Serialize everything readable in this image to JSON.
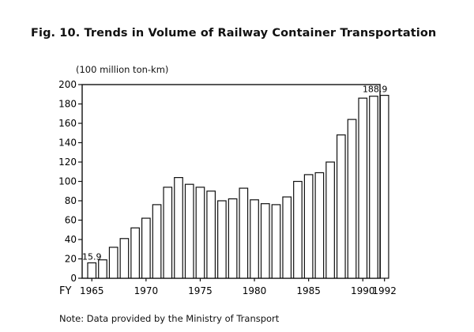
{
  "title": "Fig. 10. Trends in Volume of Railway Container Transportation",
  "unit_label": "(100 million ton-km)",
  "note": "Note:  Data provided by the Ministry of Transport",
  "chart_data": {
    "type": "bar",
    "title": "Fig. 10. Trends in Volume of Railway Container Transportation",
    "ylabel": "(100 million ton-km)",
    "xlabel": "FY",
    "ylim": [
      0,
      200
    ],
    "y_ticks": [
      0,
      20,
      40,
      60,
      80,
      100,
      120,
      140,
      160,
      180,
      200
    ],
    "x_tick_labels": [
      "1965",
      "1970",
      "1975",
      "1980",
      "1985",
      "1990",
      "1992"
    ],
    "categories": [
      1965,
      1966,
      1967,
      1968,
      1969,
      1970,
      1971,
      1972,
      1973,
      1974,
      1975,
      1976,
      1977,
      1978,
      1979,
      1980,
      1981,
      1982,
      1983,
      1984,
      1985,
      1986,
      1987,
      1988,
      1989,
      1990,
      1991,
      1992
    ],
    "values": [
      15.9,
      19,
      32,
      41,
      52,
      62,
      76,
      94,
      104,
      97,
      94,
      90,
      80,
      82,
      93,
      81,
      77,
      76,
      84,
      100,
      107,
      109,
      120,
      148,
      164,
      186,
      188,
      188.9
    ],
    "data_labels": [
      {
        "year": 1965,
        "text": "15.9"
      },
      {
        "year": 1992,
        "text": "188.9"
      }
    ],
    "grid": false,
    "legend": "none"
  }
}
